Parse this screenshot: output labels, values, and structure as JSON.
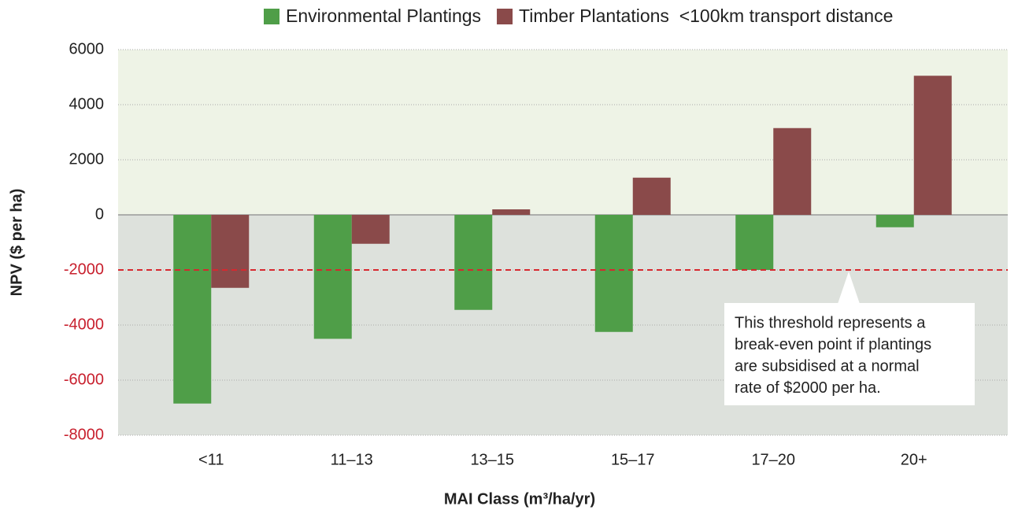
{
  "chart_data": {
    "type": "bar",
    "categories": [
      "<11",
      "11–13",
      "13–15",
      "15–17",
      "17–20",
      "20+"
    ],
    "series": [
      {
        "name": "Environmental Plantings",
        "color": "#4f9e48",
        "values": [
          -6850,
          -4500,
          -3450,
          -4250,
          -2000,
          -450
        ]
      },
      {
        "name": "Timber Plantations  <100km transport distance",
        "color": "#8a4a4a",
        "values": [
          -2650,
          -1050,
          200,
          1350,
          3150,
          5050
        ]
      }
    ],
    "ylim": [
      -8000,
      6000
    ],
    "yticks": [
      -8000,
      -6000,
      -4000,
      -2000,
      0,
      2000,
      4000,
      6000
    ],
    "grid": true,
    "legend": "top",
    "ylabel": "NPV ($ per ha)",
    "xlabel": "MAI Class (m³/ha/yr)",
    "positive_background": "#eef3e6",
    "negative_background": "#dde1dc",
    "tick_color": "#222222",
    "negative_tick_color": "#c8202e",
    "threshold": {
      "value": -2000,
      "color": "#d7282f"
    },
    "annotation": [
      "This threshold represents a",
      "break-even point if plantings",
      "are subsidised at a normal",
      "rate of $2000 per ha."
    ]
  }
}
